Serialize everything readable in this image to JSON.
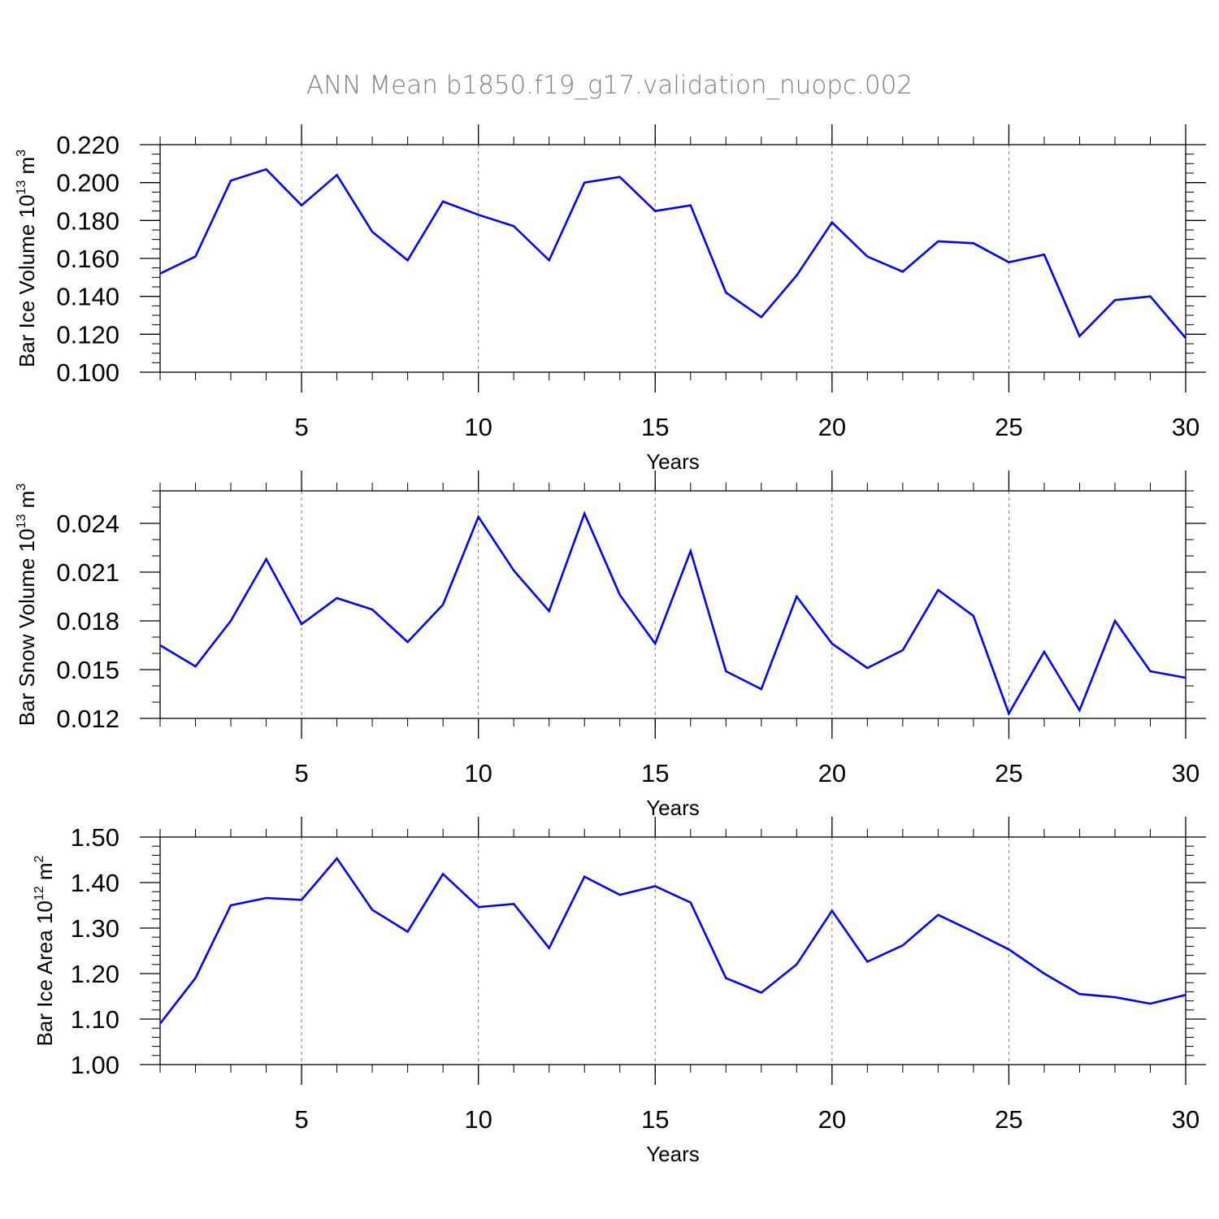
{
  "title": "ANN Mean b1850.f19_g17.validation_nuopc.002",
  "colors": {
    "line": "#0000ff",
    "axis": "#000000",
    "grid": "#808080",
    "title": "#808080"
  },
  "chart_data": [
    {
      "type": "line",
      "xlabel": "Years",
      "ylabel": {
        "main": "Bar Ice Volume 10",
        "sup": "13",
        "unit": " m",
        "unit_sup": "3"
      },
      "xlim": [
        1,
        30
      ],
      "ylim": [
        0.1,
        0.22
      ],
      "xticks": [
        "5",
        "10",
        "15",
        "20",
        "25",
        "30"
      ],
      "xtick_values": [
        5,
        10,
        15,
        20,
        25,
        30
      ],
      "yticks": [
        "0.100",
        "0.120",
        "0.140",
        "0.160",
        "0.180",
        "0.200",
        "0.220"
      ],
      "ytick_values": [
        0.1,
        0.12,
        0.14,
        0.16,
        0.18,
        0.2,
        0.22
      ],
      "yminor_step": 0.005,
      "x": [
        1,
        2,
        3,
        4,
        5,
        6,
        7,
        8,
        9,
        10,
        11,
        12,
        13,
        14,
        15,
        16,
        17,
        18,
        19,
        20,
        21,
        22,
        23,
        24,
        25,
        26,
        27,
        28,
        29,
        30
      ],
      "y": [
        0.152,
        0.161,
        0.201,
        0.207,
        0.188,
        0.204,
        0.174,
        0.159,
        0.19,
        0.183,
        0.177,
        0.159,
        0.2,
        0.203,
        0.185,
        0.188,
        0.142,
        0.129,
        0.151,
        0.179,
        0.161,
        0.153,
        0.169,
        0.168,
        0.158,
        0.162,
        0.119,
        0.138,
        0.14,
        0.118
      ]
    },
    {
      "type": "line",
      "xlabel": "Years",
      "ylabel": {
        "main": "Bar Snow Volume 10",
        "sup": "13",
        "unit": " m",
        "unit_sup": "3"
      },
      "xlim": [
        1,
        30
      ],
      "ylim": [
        0.012,
        0.026
      ],
      "xticks": [
        "5",
        "10",
        "15",
        "20",
        "25",
        "30"
      ],
      "xtick_values": [
        5,
        10,
        15,
        20,
        25,
        30
      ],
      "yticks": [
        "0.012",
        "0.015",
        "0.018",
        "0.021",
        "0.024"
      ],
      "ytick_values": [
        0.012,
        0.015,
        0.018,
        0.021,
        0.024
      ],
      "yminor_step": 0.001,
      "x": [
        1,
        2,
        3,
        4,
        5,
        6,
        7,
        8,
        9,
        10,
        11,
        12,
        13,
        14,
        15,
        16,
        17,
        18,
        19,
        20,
        21,
        22,
        23,
        24,
        25,
        26,
        27,
        28,
        29,
        30
      ],
      "y": [
        0.0165,
        0.0152,
        0.018,
        0.0218,
        0.0178,
        0.0194,
        0.0187,
        0.0167,
        0.019,
        0.0244,
        0.0211,
        0.0186,
        0.0246,
        0.0196,
        0.0166,
        0.0223,
        0.0149,
        0.0138,
        0.0195,
        0.0166,
        0.0151,
        0.0162,
        0.0199,
        0.0183,
        0.0123,
        0.0161,
        0.0125,
        0.018,
        0.0149,
        0.0145
      ]
    },
    {
      "type": "line",
      "xlabel": "Years",
      "ylabel": {
        "main": "Bar Ice Area 10",
        "sup": "12",
        "unit": " m",
        "unit_sup": "2"
      },
      "xlim": [
        1,
        30
      ],
      "ylim": [
        1.0,
        1.5
      ],
      "xticks": [
        "5",
        "10",
        "15",
        "20",
        "25",
        "30"
      ],
      "xtick_values": [
        5,
        10,
        15,
        20,
        25,
        30
      ],
      "yticks": [
        "1.00",
        "1.10",
        "1.20",
        "1.30",
        "1.40",
        "1.50"
      ],
      "ytick_values": [
        1.0,
        1.1,
        1.2,
        1.3,
        1.4,
        1.5
      ],
      "yminor_step": 0.02,
      "x": [
        1,
        2,
        3,
        4,
        5,
        6,
        7,
        8,
        9,
        10,
        11,
        12,
        13,
        14,
        15,
        16,
        17,
        18,
        19,
        20,
        21,
        22,
        23,
        24,
        25,
        26,
        27,
        28,
        29,
        30
      ],
      "y": [
        1.09,
        1.19,
        1.35,
        1.366,
        1.362,
        1.453,
        1.34,
        1.292,
        1.419,
        1.346,
        1.353,
        1.256,
        1.413,
        1.373,
        1.392,
        1.356,
        1.19,
        1.158,
        1.22,
        1.338,
        1.226,
        1.262,
        1.329,
        1.292,
        1.253,
        1.2,
        1.155,
        1.148,
        1.134,
        1.153
      ]
    }
  ]
}
